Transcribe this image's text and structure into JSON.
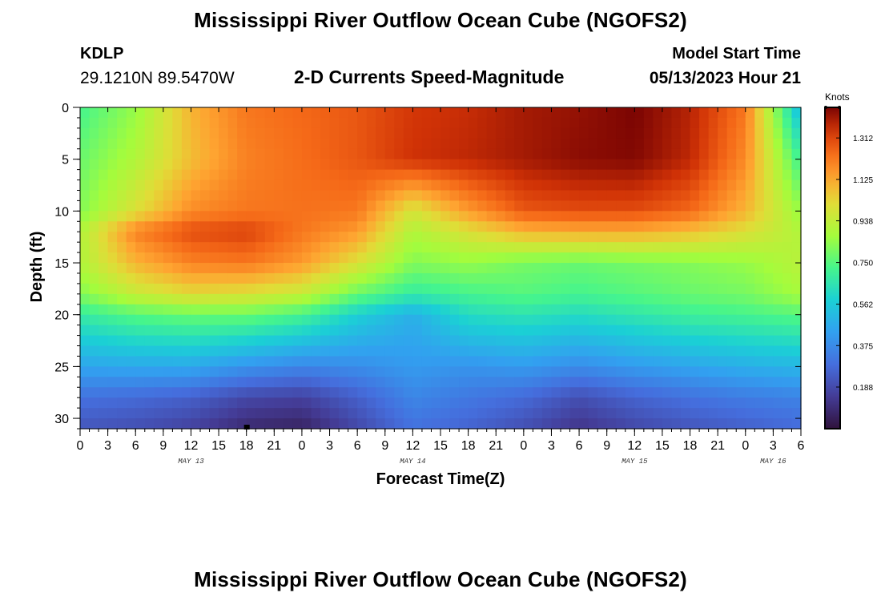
{
  "header": {
    "title": "Mississippi River Outflow Ocean Cube (NGOFS2)",
    "station_id": "KDLP",
    "station_coords": "29.1210N  89.5470W",
    "subtitle": "2-D Currents Speed-Magnitude",
    "model_start_label": "Model Start Time",
    "model_start_value": "05/13/2023 Hour 21"
  },
  "footer": {
    "title": "Mississippi River Outflow Ocean Cube (NGOFS2)"
  },
  "chart_data": {
    "type": "heatmap",
    "title": "2-D Currents Speed-Magnitude",
    "xlabel": "Forecast Time(Z)",
    "ylabel": "Depth (ft)",
    "x_unit": "forecast hours from May 13 00Z",
    "xlim": [
      0,
      78
    ],
    "ylim": [
      31,
      0
    ],
    "x_tick_values": [
      0,
      3,
      6,
      9,
      12,
      15,
      18,
      21,
      24,
      27,
      30,
      33,
      36,
      39,
      42,
      45,
      48,
      51,
      54,
      57,
      60,
      63,
      66,
      69,
      72,
      75,
      78
    ],
    "x_tick_labels": [
      "0",
      "3",
      "6",
      "9",
      "12",
      "15",
      "18",
      "21",
      "0",
      "3",
      "6",
      "9",
      "12",
      "15",
      "18",
      "21",
      "0",
      "3",
      "6",
      "9",
      "12",
      "15",
      "18",
      "21",
      "0",
      "3",
      "6"
    ],
    "y_tick_values": [
      0,
      5,
      10,
      15,
      20,
      25,
      30
    ],
    "y_tick_labels": [
      "0",
      "5",
      "10",
      "15",
      "20",
      "25",
      "30"
    ],
    "date_labels": [
      {
        "text": "MAY 13",
        "x": 12
      },
      {
        "text": "MAY 14",
        "x": 36
      },
      {
        "text": "MAY 15",
        "x": 60
      },
      {
        "text": "MAY 16",
        "x": 75
      }
    ],
    "colorbar": {
      "unit": "Knots",
      "min": 0.0,
      "max": 1.45,
      "tick_values": [
        0.188,
        0.375,
        0.562,
        0.75,
        0.938,
        1.125,
        1.312
      ],
      "tick_labels": [
        "0.188",
        "0.375",
        "0.562",
        "0.750",
        "0.938",
        "1.125",
        "1.312"
      ]
    },
    "grid": {
      "x_hours": [
        0,
        6,
        12,
        18,
        24,
        30,
        36,
        42,
        48,
        54,
        60,
        66,
        72,
        78
      ],
      "depths_ft": [
        0,
        5,
        10,
        12,
        15,
        18,
        20,
        25,
        28,
        31
      ],
      "speeds_knots": [
        [
          0.72,
          0.85,
          1.1,
          1.22,
          1.25,
          1.28,
          1.34,
          1.36,
          1.4,
          1.42,
          1.45,
          1.38,
          1.22,
          0.5
        ],
        [
          0.78,
          0.9,
          1.08,
          1.2,
          1.24,
          1.28,
          1.35,
          1.37,
          1.4,
          1.43,
          1.44,
          1.37,
          1.18,
          0.7
        ],
        [
          0.82,
          1.0,
          1.18,
          1.22,
          1.23,
          1.22,
          0.98,
          1.15,
          1.28,
          1.3,
          1.3,
          1.25,
          1.1,
          0.85
        ],
        [
          0.9,
          1.2,
          1.3,
          1.32,
          1.22,
          1.15,
          0.9,
          1.0,
          1.1,
          1.12,
          1.12,
          1.08,
          1.0,
          0.9
        ],
        [
          0.9,
          1.1,
          1.2,
          1.22,
          1.15,
          1.0,
          0.82,
          0.85,
          0.8,
          0.78,
          0.8,
          0.82,
          0.85,
          0.92
        ],
        [
          0.82,
          0.95,
          1.02,
          1.0,
          0.95,
          0.78,
          0.68,
          0.72,
          0.75,
          0.72,
          0.75,
          0.78,
          0.8,
          0.88
        ],
        [
          0.68,
          0.75,
          0.78,
          0.78,
          0.72,
          0.58,
          0.48,
          0.62,
          0.65,
          0.62,
          0.66,
          0.7,
          0.72,
          0.75
        ],
        [
          0.45,
          0.46,
          0.46,
          0.4,
          0.36,
          0.38,
          0.42,
          0.4,
          0.42,
          0.38,
          0.42,
          0.45,
          0.48,
          0.5
        ],
        [
          0.3,
          0.28,
          0.25,
          0.18,
          0.16,
          0.25,
          0.36,
          0.32,
          0.28,
          0.2,
          0.26,
          0.3,
          0.33,
          0.35
        ],
        [
          0.22,
          0.2,
          0.16,
          0.08,
          0.06,
          0.18,
          0.3,
          0.26,
          0.2,
          0.12,
          0.18,
          0.22,
          0.25,
          0.28
        ]
      ]
    }
  }
}
